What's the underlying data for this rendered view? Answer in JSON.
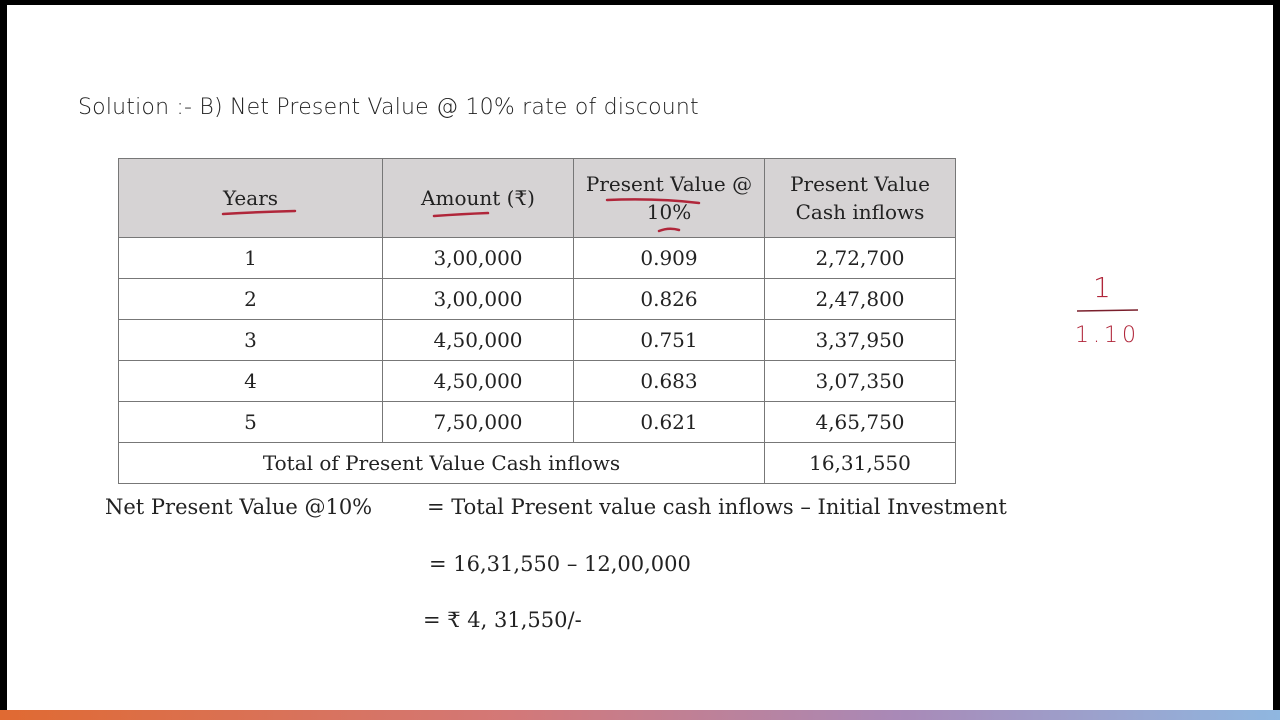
{
  "title": "Solution :- B) Net Present Value @ 10% rate of discount",
  "table": {
    "headers": [
      "Years",
      "Amount (₹)",
      "Present Value @ 10%",
      "Present Value Cash inflows"
    ],
    "rows": [
      [
        "1",
        "3,00,000",
        "0.909",
        "2,72,700"
      ],
      [
        "2",
        "3,00,000",
        "0.826",
        "2,47,800"
      ],
      [
        "3",
        "4,50,000",
        "0.751",
        "3,37,950"
      ],
      [
        "4",
        "4,50,000",
        "0.683",
        "3,07,350"
      ],
      [
        "5",
        "7,50,000",
        "0.621",
        "4,65,750"
      ]
    ],
    "total_label": "Total of Present Value Cash inflows",
    "total_value": "16,31,550"
  },
  "equations": {
    "line1_left": "Net Present  Value @10%",
    "line1_right": "=  Total Present value cash inflows – Initial Investment",
    "line2": "= 16,31,550 – 12,00,000",
    "line3": "= ₹ 4, 31,550/-"
  },
  "annotation": {
    "numerator": "1",
    "denominator": "1.10",
    "ink_color": "#b0263a"
  },
  "colors": {
    "header_bg": "#d6d3d4",
    "bar_start": "#e06a32",
    "bar_end": "#8fb7e0"
  }
}
